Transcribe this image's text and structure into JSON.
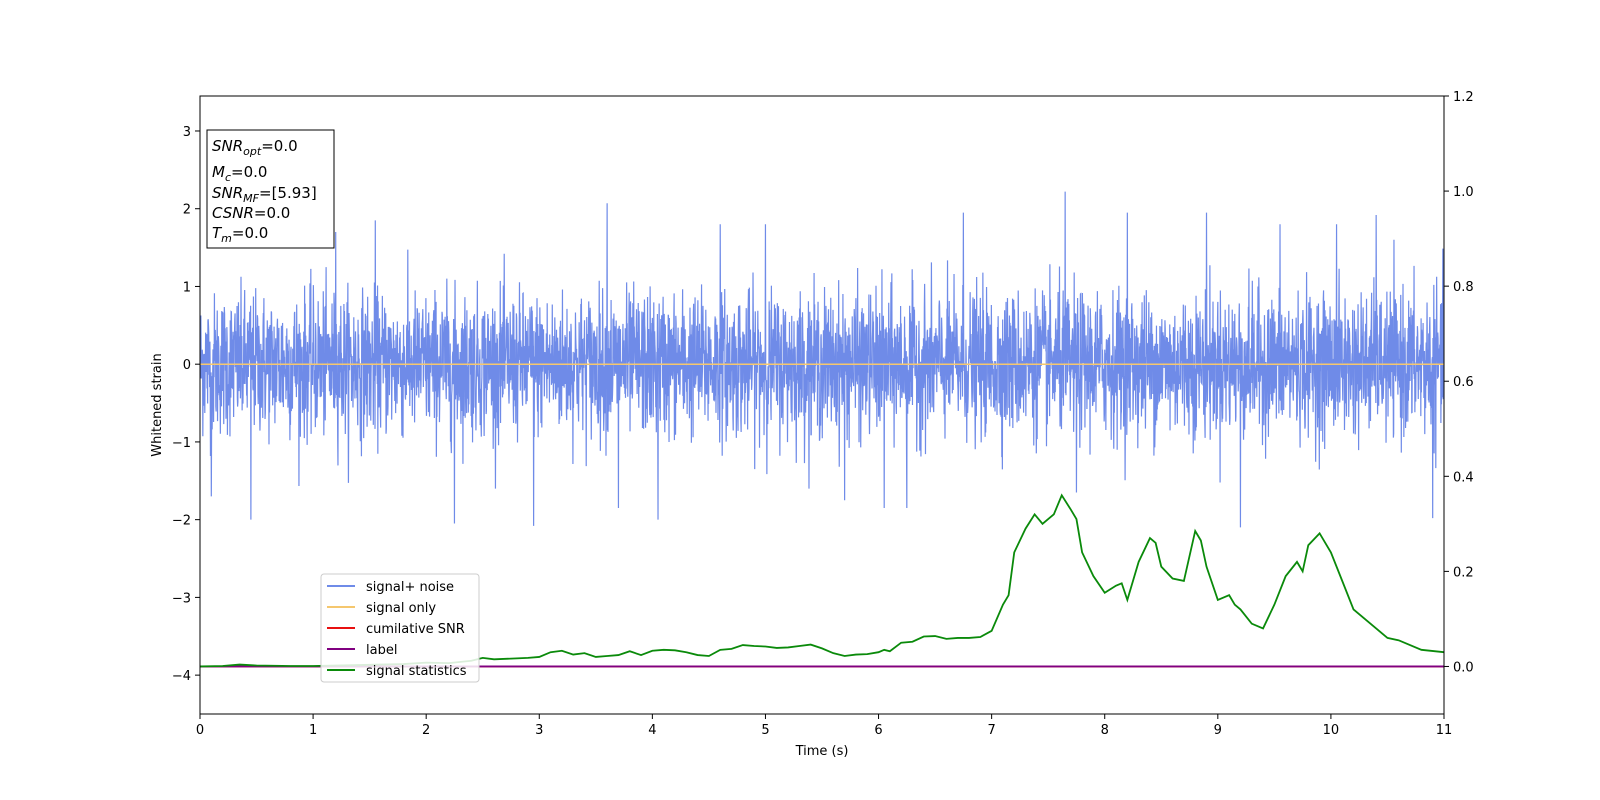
{
  "chart_data": {
    "type": "line",
    "title": "",
    "xlabel": "Time (s)",
    "ylabel": "Whitened strain",
    "xlim": [
      0,
      11
    ],
    "ylim": [
      -4.5,
      3.45
    ],
    "y2lim": [
      -0.1,
      1.2
    ],
    "x_ticks": [
      0,
      1,
      2,
      3,
      4,
      5,
      6,
      7,
      8,
      9,
      10,
      11
    ],
    "y_ticks": [
      -4,
      -3,
      -2,
      -1,
      0,
      1,
      2,
      3
    ],
    "y2_ticks": [
      "0.0",
      "0.2",
      "0.4",
      "0.6",
      "0.8",
      "1.0",
      "1.2"
    ],
    "y2_tick_values": [
      0.0,
      0.2,
      0.4,
      0.6,
      0.8,
      1.0,
      1.2
    ],
    "grid": false,
    "legend_position": "lower-left",
    "series": [
      {
        "name": "signal+ noise",
        "color": "#6f8be8",
        "axis": "left",
        "description_noise": "whitened noise, roughly -2.1 to 2.2",
        "peak_points": [
          [
            0.1,
            -1.7
          ],
          [
            0.45,
            -2.0
          ],
          [
            1.2,
            1.7
          ],
          [
            1.55,
            1.85
          ],
          [
            2.25,
            -2.05
          ],
          [
            2.95,
            -2.08
          ],
          [
            3.6,
            2.07
          ],
          [
            3.7,
            -1.85
          ],
          [
            4.05,
            -2.0
          ],
          [
            4.6,
            1.8
          ],
          [
            5.0,
            1.8
          ],
          [
            5.7,
            -1.75
          ],
          [
            6.05,
            -1.85
          ],
          [
            6.25,
            -1.85
          ],
          [
            6.75,
            1.95
          ],
          [
            7.65,
            2.22
          ],
          [
            7.75,
            -1.65
          ],
          [
            8.2,
            1.95
          ],
          [
            8.9,
            1.95
          ],
          [
            9.2,
            -2.1
          ],
          [
            9.55,
            1.8
          ],
          [
            10.05,
            1.8
          ],
          [
            10.4,
            1.92
          ],
          [
            10.9,
            1.8
          ],
          [
            10.9,
            -1.98
          ]
        ]
      },
      {
        "name": "signal only",
        "color": "#f5c76e",
        "axis": "left",
        "x": [
          0,
          11
        ],
        "y": [
          0,
          0
        ]
      },
      {
        "name": "cumilative SNR",
        "color": "#e81010",
        "axis": "right",
        "x": [
          0,
          11
        ],
        "y": [
          0,
          0
        ]
      },
      {
        "name": "label",
        "color": "#800080",
        "axis": "right",
        "x": [
          0,
          11
        ],
        "y": [
          0,
          0
        ]
      },
      {
        "name": "signal statistics",
        "color": "#0a8a0a",
        "axis": "right",
        "x": [
          0.0,
          0.2,
          0.35,
          0.5,
          0.8,
          1.0,
          1.2,
          1.4,
          1.6,
          1.8,
          2.0,
          2.2,
          2.4,
          2.5,
          2.6,
          2.8,
          2.9,
          3.0,
          3.1,
          3.2,
          3.3,
          3.4,
          3.5,
          3.6,
          3.7,
          3.8,
          3.9,
          4.0,
          4.1,
          4.2,
          4.3,
          4.4,
          4.5,
          4.6,
          4.7,
          4.8,
          4.9,
          5.0,
          5.1,
          5.2,
          5.3,
          5.4,
          5.5,
          5.6,
          5.7,
          5.8,
          5.9,
          6.0,
          6.05,
          6.1,
          6.2,
          6.3,
          6.4,
          6.5,
          6.6,
          6.7,
          6.8,
          6.9,
          7.0,
          7.1,
          7.15,
          7.2,
          7.3,
          7.38,
          7.45,
          7.5,
          7.55,
          7.62,
          7.7,
          7.75,
          7.8,
          7.9,
          8.0,
          8.1,
          8.15,
          8.2,
          8.3,
          8.4,
          8.45,
          8.5,
          8.6,
          8.7,
          8.8,
          8.85,
          8.9,
          9.0,
          9.1,
          9.15,
          9.2,
          9.3,
          9.4,
          9.5,
          9.6,
          9.7,
          9.75,
          9.8,
          9.9,
          10.0,
          10.1,
          10.2,
          10.4,
          10.5,
          10.6,
          10.8,
          11.0
        ],
        "y": [
          0.0,
          0.001,
          0.004,
          0.002,
          0.001,
          0.001,
          0.002,
          0.003,
          0.004,
          0.005,
          0.008,
          0.007,
          0.012,
          0.018,
          0.015,
          0.017,
          0.018,
          0.02,
          0.03,
          0.033,
          0.025,
          0.028,
          0.02,
          0.022,
          0.024,
          0.032,
          0.024,
          0.033,
          0.035,
          0.034,
          0.03,
          0.024,
          0.022,
          0.035,
          0.037,
          0.045,
          0.043,
          0.042,
          0.039,
          0.04,
          0.043,
          0.046,
          0.038,
          0.028,
          0.022,
          0.025,
          0.026,
          0.03,
          0.035,
          0.032,
          0.05,
          0.052,
          0.063,
          0.064,
          0.058,
          0.06,
          0.06,
          0.062,
          0.075,
          0.13,
          0.15,
          0.24,
          0.29,
          0.32,
          0.3,
          0.31,
          0.32,
          0.36,
          0.33,
          0.31,
          0.24,
          0.19,
          0.155,
          0.17,
          0.175,
          0.14,
          0.22,
          0.27,
          0.26,
          0.21,
          0.185,
          0.18,
          0.285,
          0.265,
          0.21,
          0.14,
          0.15,
          0.13,
          0.12,
          0.09,
          0.08,
          0.13,
          0.19,
          0.22,
          0.2,
          0.255,
          0.28,
          0.24,
          0.18,
          0.12,
          0.08,
          0.06,
          0.055,
          0.035,
          0.03
        ]
      }
    ],
    "annotation_box": {
      "snr_opt_label": "SNR",
      "snr_opt_sub": "opt",
      "snr_opt_value": "=0.0",
      "mc_label": "M",
      "mc_sub": "c",
      "mc_value": "=0.0",
      "snr_mf_label": "SNR",
      "snr_mf_sub": "MF",
      "snr_mf_value": "=[5.93]",
      "csnr_label": "CSNR",
      "csnr_value": "=0.0",
      "tm_label": "T",
      "tm_sub": "m",
      "tm_value": "=0.0"
    }
  }
}
